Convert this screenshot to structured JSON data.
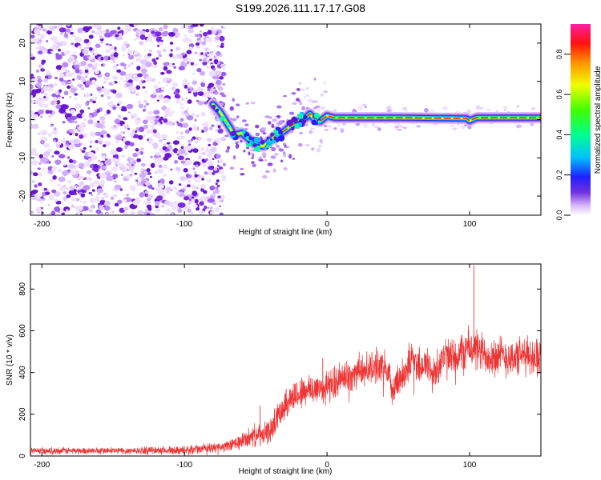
{
  "title": "S199.2026.111.17.17.G08",
  "colors": {
    "snr_line": "#ee3333",
    "frame": "#000000",
    "speckle": "#7a2be0"
  },
  "chart_data": [
    {
      "type": "heatmap",
      "name": "spectrogram",
      "title": "S199.2026.111.17.17.G08",
      "xlabel": "Height of straight line (km)",
      "ylabel": "Frequency (Hz)",
      "xlim": [
        -208,
        150
      ],
      "ylim": [
        -25,
        25
      ],
      "xticks": [
        -200,
        -100,
        0,
        100
      ],
      "yticks": [
        -20,
        -10,
        0,
        10,
        20
      ],
      "noise_region_x": [
        -208,
        -80
      ],
      "ridge": {
        "x": [
          -80,
          -75,
          -70,
          -65,
          -60,
          -55,
          -50,
          -45,
          -40,
          -35,
          -30,
          -25,
          -20,
          -15,
          -12,
          -10,
          -5,
          0,
          5,
          10,
          50,
          98,
          100,
          105,
          150
        ],
        "freq": [
          4,
          2,
          -1,
          -4,
          -3.5,
          -5,
          -6.5,
          -7,
          -5.5,
          -4,
          -3,
          -1.5,
          -0.5,
          0.5,
          1.5,
          0.5,
          -0.5,
          1,
          0.5,
          0.5,
          0.5,
          0.3,
          -0.3,
          0.5,
          0.5
        ]
      },
      "colorbar": {
        "label": "Normalized spectral amplitude",
        "range": [
          0,
          0.95
        ],
        "ticks": [
          0.0,
          0.2,
          0.4,
          0.6,
          0.8
        ]
      }
    },
    {
      "type": "line",
      "name": "snr",
      "xlabel": "Height of straight line (km)",
      "ylabel": "SNR (10 * v/v)",
      "xlim": [
        -208,
        150
      ],
      "ylim": [
        0,
        920
      ],
      "xticks": [
        -200,
        -100,
        0,
        100
      ],
      "yticks": [
        0,
        200,
        400,
        600,
        800
      ],
      "series": [
        {
          "name": "SNR",
          "x": [
            -208,
            -150,
            -100,
            -70,
            -60,
            -50,
            -45,
            -40,
            -30,
            -20,
            -10,
            0,
            5,
            10,
            20,
            30,
            40,
            45,
            50,
            55,
            60,
            65,
            70,
            75,
            80,
            90,
            100,
            110,
            120,
            130,
            140,
            150
          ],
          "mean": [
            25,
            25,
            28,
            45,
            70,
            100,
            95,
            120,
            250,
            300,
            320,
            330,
            350,
            370,
            400,
            420,
            440,
            330,
            360,
            410,
            470,
            430,
            440,
            380,
            470,
            470,
            520,
            490,
            480,
            470,
            480,
            480
          ],
          "spread": [
            25,
            25,
            30,
            40,
            60,
            80,
            80,
            90,
            110,
            120,
            120,
            120,
            120,
            120,
            120,
            120,
            120,
            120,
            130,
            130,
            140,
            140,
            140,
            140,
            150,
            150,
            160,
            150,
            150,
            140,
            140,
            140
          ]
        }
      ],
      "peaks": [
        {
          "x": -47,
          "y": 240
        },
        {
          "x": -3,
          "y": 470
        },
        {
          "x": 103,
          "y": 915
        }
      ]
    }
  ]
}
